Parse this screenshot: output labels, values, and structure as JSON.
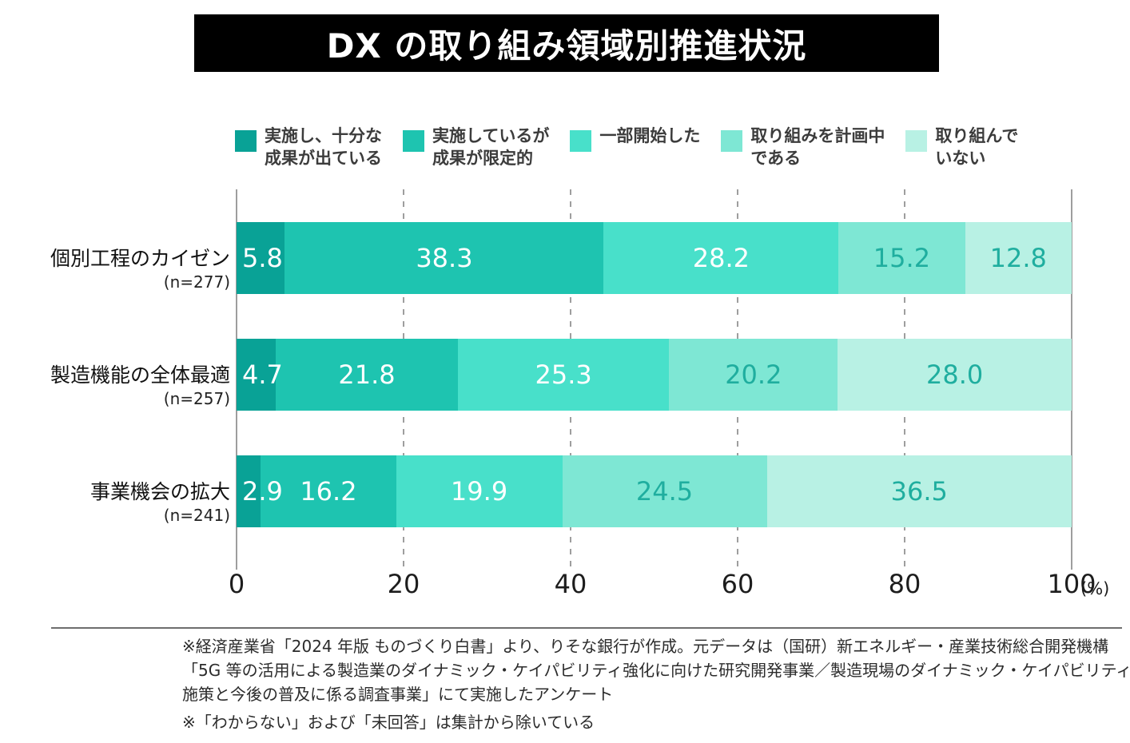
{
  "title": "DX の取り組み領域別推進状況",
  "chart_data": {
    "type": "bar",
    "orientation": "horizontal",
    "stacked": true,
    "unit": "%",
    "categories": [
      {
        "label": "個別工程のカイゼン",
        "n": "(n=277)"
      },
      {
        "label": "製造機能の全体最適",
        "n": "(n=257)"
      },
      {
        "label": "事業機会の拡大",
        "n": "(n=241)"
      }
    ],
    "series": [
      {
        "name": "実施し、十分な成果が出ている",
        "label_lines": [
          "実施し、十分な",
          "成果が出ている"
        ],
        "color": "#09a296",
        "values": [
          5.8,
          4.7,
          2.9
        ],
        "value_text_color": "#ffffff"
      },
      {
        "name": "実施しているが成果が限定的",
        "label_lines": [
          "実施しているが",
          "成果が限定的"
        ],
        "color": "#1ec4b0",
        "values": [
          38.3,
          21.8,
          16.2
        ],
        "value_text_color": "#ffffff"
      },
      {
        "name": "一部開始した",
        "label_lines": [
          "一部開始した"
        ],
        "color": "#48e0ca",
        "values": [
          28.2,
          25.3,
          19.9
        ],
        "value_text_color": "#ffffff"
      },
      {
        "name": "取り組みを計画中である",
        "label_lines": [
          "取り組みを計画中",
          "である"
        ],
        "color": "#7ee7d4",
        "values": [
          15.2,
          20.2,
          24.5
        ],
        "value_text_color": "#1fae9f"
      },
      {
        "name": "取り組んでいない",
        "label_lines": [
          "取り組んで",
          "いない"
        ],
        "color": "#b8f1e4",
        "values": [
          12.8,
          28.0,
          36.5
        ],
        "value_text_color": "#1fae9f"
      }
    ],
    "x_axis": {
      "ticks": [
        0,
        20,
        40,
        60,
        80,
        100
      ],
      "suffix": "(%)",
      "range": [
        0,
        100
      ]
    },
    "grid": {
      "dashed_at": [
        20,
        40,
        60,
        80
      ],
      "solid_at": [
        0,
        100
      ],
      "legend_position": "top"
    }
  },
  "footnotes": [
    "※経済産業省「2024 年版 ものづくり白書」より、りそな銀行が作成。元データは（国研）新エネルギー・産業技術総合開発機構",
    "「5G 等の活用による製造業のダイナミック・ケイパビリティ強化に向けた研究開発事業／製造現場のダイナミック・ケイパビリティ強化",
    "施策と今後の普及に係る調査事業」にて実施したアンケート",
    "※「わからない」および「未回答」は集計から除いている"
  ]
}
